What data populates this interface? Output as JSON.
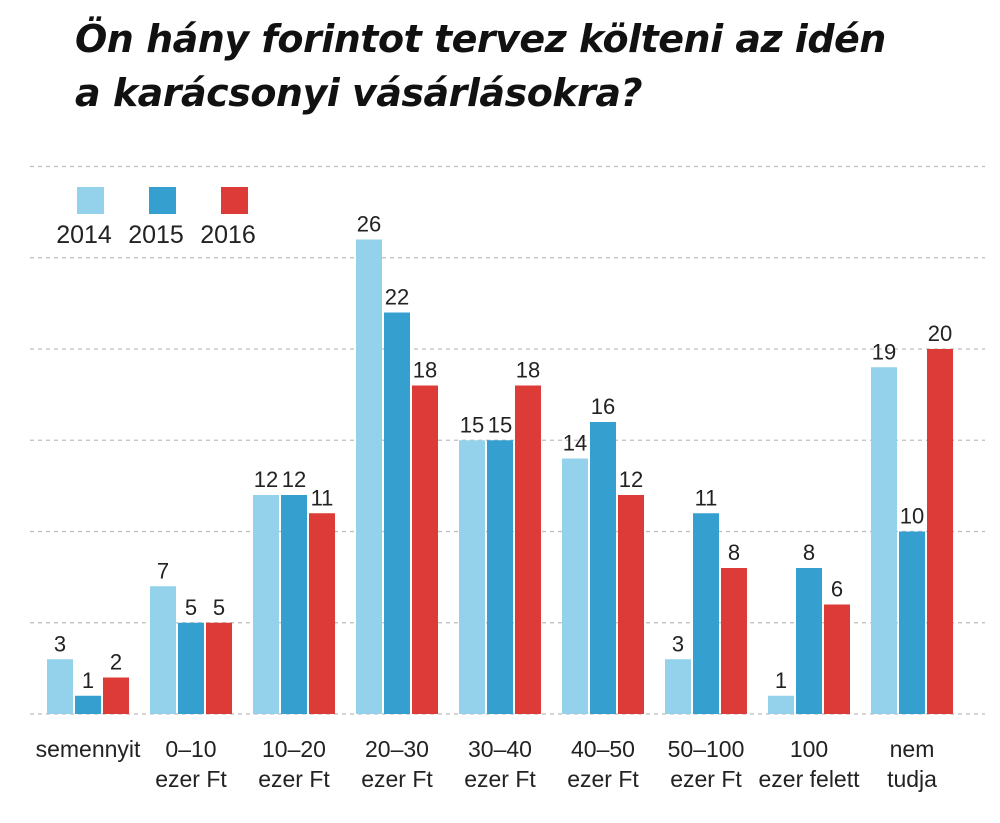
{
  "title_lines": [
    "Ön hány forintot tervez költeni az idén",
    "a karácsonyi vásárlásokra?"
  ],
  "chart_data": {
    "type": "bar",
    "title": "Ön hány forintot tervez költeni az idén a karácsonyi vásárlásokra?",
    "categories": [
      [
        "semennyit"
      ],
      [
        "0–10",
        "ezer Ft"
      ],
      [
        "10–20",
        "ezer Ft"
      ],
      [
        "20–30",
        "ezer Ft"
      ],
      [
        "30–40",
        "ezer Ft"
      ],
      [
        "40–50",
        "ezer Ft"
      ],
      [
        "50–100",
        "ezer Ft"
      ],
      [
        "100",
        "ezer felett"
      ],
      [
        "nem",
        "tudja"
      ]
    ],
    "series": [
      {
        "name": "2014",
        "color": "#93d2ea",
        "values": [
          3,
          7,
          12,
          26,
          15,
          14,
          3,
          1,
          19
        ]
      },
      {
        "name": "2015",
        "color": "#35a0d0",
        "values": [
          1,
          5,
          12,
          22,
          15,
          16,
          11,
          8,
          10
        ]
      },
      {
        "name": "2016",
        "color": "#dc3b37",
        "values": [
          2,
          5,
          11,
          18,
          18,
          12,
          8,
          6,
          20
        ]
      }
    ],
    "ylim": [
      0,
      30
    ],
    "grid_step": 5,
    "grid": true,
    "legend_position": "top-left",
    "xlabel": "",
    "ylabel": ""
  }
}
